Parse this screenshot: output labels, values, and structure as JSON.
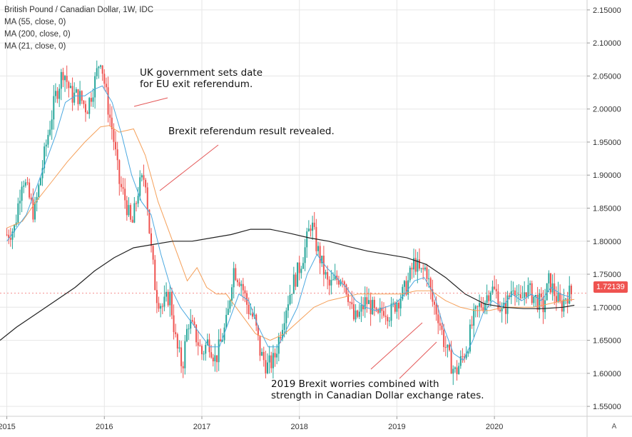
{
  "legend": {
    "symbol": "British Pound / Canadian Dollar, 1W, IDC",
    "ma1": "MA (55, close, 0)",
    "ma2": "MA (200, close, 0)",
    "ma3": "MA (21, close, 0)"
  },
  "annotations": {
    "a1_line1": "UK government sets date",
    "a1_line2": "for EU exit referendum.",
    "a2": "Brexit referendum result revealed.",
    "a3_line1": "2019 Brexit worries combined with",
    "a3_line2": "strength in Canadian Dollar exchange rates."
  },
  "price_tag": "1.72139",
  "autoscale_label": "A",
  "colors": {
    "up": "#26a69a",
    "down": "#ef5350",
    "ma55": "#f5a05a",
    "ma200": "#222222",
    "ma21": "#4aa8e0",
    "grid": "#e6e6e6",
    "arrow": "#e45858"
  },
  "chart_data": {
    "type": "candlestick",
    "x_ticks": [
      "2015",
      "2016",
      "2017",
      "2018",
      "2019",
      "2020"
    ],
    "y_ticks": [
      "1.55000",
      "1.60000",
      "1.65000",
      "1.70000",
      "1.75000",
      "1.80000",
      "1.85000",
      "1.90000",
      "1.95000",
      "2.00000",
      "2.05000",
      "2.10000",
      "2.15000"
    ],
    "ylim": [
      1.535,
      2.165
    ],
    "xlim": [
      2014.93,
      2020.95
    ],
    "close_path": [
      [
        2015.0,
        1.81
      ],
      [
        2015.08,
        1.82
      ],
      [
        2015.16,
        1.9
      ],
      [
        2015.22,
        1.87
      ],
      [
        2015.28,
        1.84
      ],
      [
        2015.35,
        1.9
      ],
      [
        2015.42,
        1.96
      ],
      [
        2015.5,
        2.02
      ],
      [
        2015.58,
        2.06
      ],
      [
        2015.66,
        2.02
      ],
      [
        2015.74,
        2.02
      ],
      [
        2015.82,
        2.0
      ],
      [
        2015.9,
        2.04
      ],
      [
        2015.96,
        2.08
      ],
      [
        2016.03,
        2.01
      ],
      [
        2016.09,
        1.96
      ],
      [
        2016.15,
        1.89
      ],
      [
        2016.22,
        1.86
      ],
      [
        2016.28,
        1.82
      ],
      [
        2016.35,
        1.88
      ],
      [
        2016.42,
        1.9
      ],
      [
        2016.47,
        1.8
      ],
      [
        2016.53,
        1.72
      ],
      [
        2016.6,
        1.7
      ],
      [
        2016.67,
        1.72
      ],
      [
        2016.74,
        1.64
      ],
      [
        2016.8,
        1.61
      ],
      [
        2016.86,
        1.68
      ],
      [
        2016.93,
        1.66
      ],
      [
        2017.0,
        1.63
      ],
      [
        2017.07,
        1.65
      ],
      [
        2017.14,
        1.62
      ],
      [
        2017.2,
        1.65
      ],
      [
        2017.26,
        1.68
      ],
      [
        2017.32,
        1.76
      ],
      [
        2017.4,
        1.74
      ],
      [
        2017.47,
        1.7
      ],
      [
        2017.54,
        1.68
      ],
      [
        2017.6,
        1.63
      ],
      [
        2017.67,
        1.61
      ],
      [
        2017.74,
        1.62
      ],
      [
        2017.8,
        1.66
      ],
      [
        2017.86,
        1.7
      ],
      [
        2017.92,
        1.73
      ],
      [
        2018.0,
        1.76
      ],
      [
        2018.06,
        1.79
      ],
      [
        2018.12,
        1.83
      ],
      [
        2018.18,
        1.79
      ],
      [
        2018.24,
        1.76
      ],
      [
        2018.3,
        1.73
      ],
      [
        2018.37,
        1.74
      ],
      [
        2018.44,
        1.75
      ],
      [
        2018.5,
        1.72
      ],
      [
        2018.56,
        1.68
      ],
      [
        2018.62,
        1.69
      ],
      [
        2018.68,
        1.71
      ],
      [
        2018.74,
        1.7
      ],
      [
        2018.8,
        1.68
      ],
      [
        2018.86,
        1.7
      ],
      [
        2018.93,
        1.69
      ],
      [
        2019.0,
        1.71
      ],
      [
        2019.06,
        1.72
      ],
      [
        2019.12,
        1.74
      ],
      [
        2019.18,
        1.77
      ],
      [
        2019.24,
        1.75
      ],
      [
        2019.3,
        1.76
      ],
      [
        2019.36,
        1.71
      ],
      [
        2019.42,
        1.69
      ],
      [
        2019.48,
        1.65
      ],
      [
        2019.54,
        1.62
      ],
      [
        2019.6,
        1.6
      ],
      [
        2019.66,
        1.62
      ],
      [
        2019.72,
        1.64
      ],
      [
        2019.78,
        1.68
      ],
      [
        2019.84,
        1.7
      ],
      [
        2019.9,
        1.71
      ],
      [
        2019.96,
        1.73
      ],
      [
        2020.02,
        1.72
      ],
      [
        2020.08,
        1.69
      ],
      [
        2020.14,
        1.71
      ],
      [
        2020.2,
        1.74
      ],
      [
        2020.26,
        1.7
      ],
      [
        2020.32,
        1.73
      ],
      [
        2020.38,
        1.72
      ],
      [
        2020.44,
        1.71
      ],
      [
        2020.5,
        1.7
      ],
      [
        2020.56,
        1.74
      ],
      [
        2020.62,
        1.72
      ],
      [
        2020.68,
        1.7
      ],
      [
        2020.74,
        1.72
      ],
      [
        2020.8,
        1.721
      ]
    ],
    "series": [
      {
        "name": "MA (55, close, 0)",
        "points": [
          [
            2015.0,
            1.82
          ],
          [
            2015.16,
            1.83
          ],
          [
            2015.3,
            1.86
          ],
          [
            2015.46,
            1.89
          ],
          [
            2015.62,
            1.92
          ],
          [
            2015.8,
            1.95
          ],
          [
            2015.96,
            1.973
          ],
          [
            2016.05,
            1.975
          ],
          [
            2016.15,
            1.965
          ],
          [
            2016.3,
            1.97
          ],
          [
            2016.42,
            1.93
          ],
          [
            2016.55,
            1.86
          ],
          [
            2016.7,
            1.8
          ],
          [
            2016.85,
            1.74
          ],
          [
            2016.95,
            1.76
          ],
          [
            2017.05,
            1.73
          ],
          [
            2017.15,
            1.72
          ],
          [
            2017.25,
            1.72
          ],
          [
            2017.4,
            1.69
          ],
          [
            2017.55,
            1.66
          ],
          [
            2017.7,
            1.65
          ],
          [
            2017.85,
            1.66
          ],
          [
            2018.0,
            1.68
          ],
          [
            2018.15,
            1.7
          ],
          [
            2018.3,
            1.71
          ],
          [
            2018.45,
            1.715
          ],
          [
            2018.6,
            1.72
          ],
          [
            2018.75,
            1.72
          ],
          [
            2018.9,
            1.72
          ],
          [
            2019.05,
            1.72
          ],
          [
            2019.2,
            1.725
          ],
          [
            2019.35,
            1.725
          ],
          [
            2019.5,
            1.71
          ],
          [
            2019.65,
            1.7
          ],
          [
            2019.8,
            1.695
          ],
          [
            2019.95,
            1.695
          ],
          [
            2020.1,
            1.7
          ],
          [
            2020.25,
            1.7
          ],
          [
            2020.4,
            1.7
          ],
          [
            2020.55,
            1.705
          ],
          [
            2020.7,
            1.71
          ],
          [
            2020.82,
            1.712
          ]
        ]
      },
      {
        "name": "MA (200, close, 0)",
        "points": [
          [
            2014.93,
            1.65
          ],
          [
            2015.1,
            1.67
          ],
          [
            2015.3,
            1.69
          ],
          [
            2015.5,
            1.71
          ],
          [
            2015.7,
            1.73
          ],
          [
            2015.9,
            1.755
          ],
          [
            2016.1,
            1.775
          ],
          [
            2016.3,
            1.79
          ],
          [
            2016.5,
            1.795
          ],
          [
            2016.7,
            1.8
          ],
          [
            2016.9,
            1.8
          ],
          [
            2017.1,
            1.805
          ],
          [
            2017.3,
            1.81
          ],
          [
            2017.5,
            1.818
          ],
          [
            2017.7,
            1.818
          ],
          [
            2017.9,
            1.812
          ],
          [
            2018.1,
            1.805
          ],
          [
            2018.3,
            1.8
          ],
          [
            2018.5,
            1.792
          ],
          [
            2018.7,
            1.785
          ],
          [
            2018.9,
            1.78
          ],
          [
            2019.1,
            1.775
          ],
          [
            2019.3,
            1.765
          ],
          [
            2019.5,
            1.745
          ],
          [
            2019.7,
            1.72
          ],
          [
            2019.9,
            1.705
          ],
          [
            2020.1,
            1.7
          ],
          [
            2020.3,
            1.698
          ],
          [
            2020.5,
            1.698
          ],
          [
            2020.7,
            1.7
          ],
          [
            2020.82,
            1.703
          ]
        ]
      },
      {
        "name": "MA (21, close, 0)",
        "points": [
          [
            2015.0,
            1.8
          ],
          [
            2015.1,
            1.82
          ],
          [
            2015.2,
            1.84
          ],
          [
            2015.3,
            1.88
          ],
          [
            2015.4,
            1.92
          ],
          [
            2015.5,
            1.96
          ],
          [
            2015.6,
            2.01
          ],
          [
            2015.7,
            2.02
          ],
          [
            2015.8,
            2.02
          ],
          [
            2015.9,
            2.03
          ],
          [
            2015.98,
            2.035
          ],
          [
            2016.08,
            2.01
          ],
          [
            2016.18,
            1.96
          ],
          [
            2016.28,
            1.9
          ],
          [
            2016.38,
            1.86
          ],
          [
            2016.48,
            1.84
          ],
          [
            2016.58,
            1.78
          ],
          [
            2016.68,
            1.73
          ],
          [
            2016.78,
            1.7
          ],
          [
            2016.88,
            1.68
          ],
          [
            2016.98,
            1.66
          ],
          [
            2017.08,
            1.64
          ],
          [
            2017.18,
            1.64
          ],
          [
            2017.28,
            1.68
          ],
          [
            2017.38,
            1.72
          ],
          [
            2017.48,
            1.71
          ],
          [
            2017.58,
            1.67
          ],
          [
            2017.68,
            1.64
          ],
          [
            2017.78,
            1.64
          ],
          [
            2017.88,
            1.67
          ],
          [
            2017.98,
            1.7
          ],
          [
            2018.08,
            1.75
          ],
          [
            2018.18,
            1.78
          ],
          [
            2018.28,
            1.76
          ],
          [
            2018.38,
            1.745
          ],
          [
            2018.48,
            1.73
          ],
          [
            2018.58,
            1.71
          ],
          [
            2018.68,
            1.7
          ],
          [
            2018.78,
            1.695
          ],
          [
            2018.88,
            1.7
          ],
          [
            2018.98,
            1.705
          ],
          [
            2019.08,
            1.72
          ],
          [
            2019.18,
            1.74
          ],
          [
            2019.28,
            1.745
          ],
          [
            2019.38,
            1.72
          ],
          [
            2019.48,
            1.67
          ],
          [
            2019.58,
            1.63
          ],
          [
            2019.68,
            1.62
          ],
          [
            2019.78,
            1.65
          ],
          [
            2019.88,
            1.69
          ],
          [
            2019.98,
            1.71
          ],
          [
            2020.08,
            1.7
          ],
          [
            2020.18,
            1.72
          ],
          [
            2020.28,
            1.71
          ],
          [
            2020.38,
            1.72
          ],
          [
            2020.48,
            1.71
          ],
          [
            2020.58,
            1.73
          ],
          [
            2020.68,
            1.72
          ],
          [
            2020.78,
            1.715
          ]
        ]
      }
    ]
  }
}
